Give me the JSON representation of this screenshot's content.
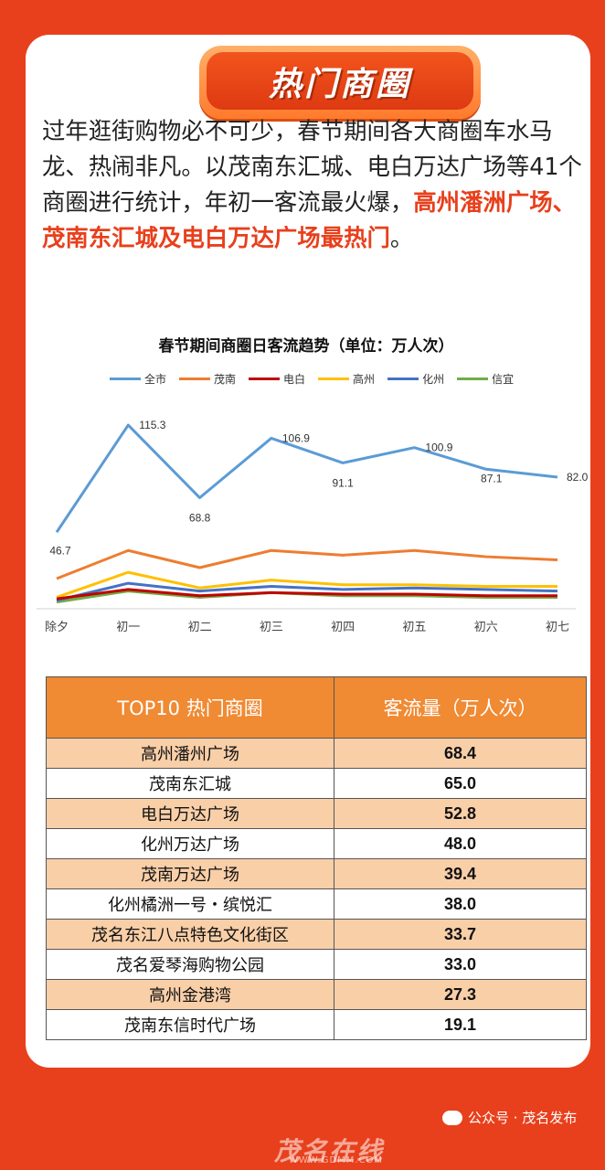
{
  "banner": {
    "title": "热门商圈"
  },
  "intro": {
    "text": "过年逛街购物必不可少，春节期间各大商圈车水马龙、热闹非凡。以茂南东汇城、电白万达广场等41个商圈进行统计，年初一客流最火爆，",
    "highlight": "高州潘洲广场、茂南东汇城及电白万达广场最热门",
    "end": "。"
  },
  "chart_data": {
    "type": "line",
    "title": "春节期间商圈日客流趋势（单位：万人次）",
    "x": [
      "除夕",
      "初一",
      "初二",
      "初三",
      "初四",
      "初五",
      "初六",
      "初七"
    ],
    "ylim": [
      0,
      130
    ],
    "grid": false,
    "legend": "top",
    "series": [
      {
        "name": "全市",
        "color": "#5b9bd5",
        "values": [
          46.7,
          115.3,
          68.8,
          106.9,
          91.1,
          100.9,
          87.1,
          82.0
        ],
        "labels": [
          "46.7",
          "115.3",
          "68.8",
          "106.9",
          "91.1",
          "100.9",
          "87.1",
          "82.0"
        ]
      },
      {
        "name": "茂南",
        "color": "#ed7d31",
        "values": [
          17,
          35,
          24,
          35,
          32,
          35,
          31,
          29
        ]
      },
      {
        "name": "电白",
        "color": "#c00000",
        "values": [
          4,
          10,
          6,
          8,
          7,
          7,
          6,
          6
        ]
      },
      {
        "name": "高州",
        "color": "#ffc000",
        "values": [
          5,
          21,
          11,
          16,
          13,
          13,
          12,
          12
        ]
      },
      {
        "name": "化州",
        "color": "#4472c4",
        "values": [
          3,
          14,
          9,
          12,
          10,
          11,
          10,
          9
        ]
      },
      {
        "name": "信宜",
        "color": "#70ad47",
        "values": [
          2,
          9,
          5,
          8,
          6,
          6,
          5,
          5
        ]
      }
    ]
  },
  "table": {
    "headers": [
      "TOP10 热门商圈",
      "客流量（万人次）"
    ],
    "rows": [
      [
        "高州潘州广场",
        "68.4"
      ],
      [
        "茂南东汇城",
        "65.0"
      ],
      [
        "电白万达广场",
        "52.8"
      ],
      [
        "化州万达广场",
        "48.0"
      ],
      [
        "茂南万达广场",
        "39.4"
      ],
      [
        "化州橘洲一号・缤悦汇",
        "38.0"
      ],
      [
        "茂名东江八点特色文化街区",
        "33.7"
      ],
      [
        "茂名爱琴海购物公园",
        "33.0"
      ],
      [
        "高州金港湾",
        "27.3"
      ],
      [
        "茂南东信时代广场",
        "19.1"
      ]
    ]
  },
  "footer": {
    "wechat": "公众号 · 茂名发布",
    "watermark": "茂名在线",
    "watermark_url": "WWW.GDMM.COM"
  }
}
